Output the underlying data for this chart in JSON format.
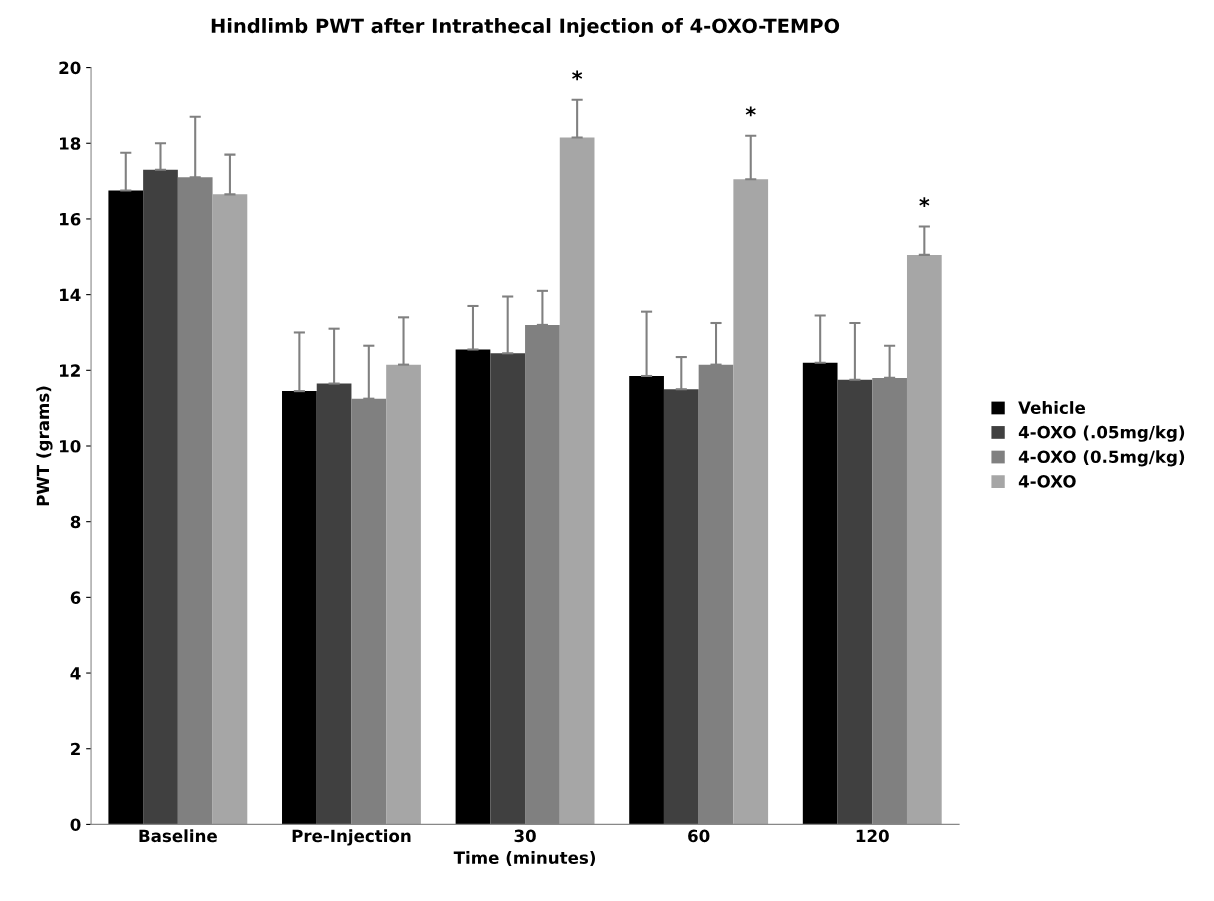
{
  "chart_data": {
    "type": "bar",
    "title": "Hindlimb PWT after Intrathecal Injection of 4-OXO-TEMPO",
    "xlabel": "Time (minutes)",
    "ylabel": "PWT (grams)",
    "categories": [
      "Baseline",
      "Pre-Injection",
      "30",
      "60",
      "120"
    ],
    "series": [
      {
        "name": "Vehicle",
        "color": "#000000",
        "values": [
          16.75,
          11.45,
          12.55,
          11.85,
          12.2
        ],
        "errors": [
          [
            16.75,
            17.75
          ],
          [
            11.45,
            13.0
          ],
          [
            12.55,
            13.7
          ],
          [
            11.85,
            13.55
          ],
          [
            12.2,
            13.45
          ]
        ]
      },
      {
        "name": "4-OXO (.05mg/kg)",
        "color": "#404040",
        "values": [
          17.3,
          11.65,
          12.45,
          11.5,
          11.75
        ],
        "errors": [
          [
            17.3,
            18.0
          ],
          [
            11.65,
            13.1
          ],
          [
            12.45,
            13.95
          ],
          [
            11.5,
            12.35
          ],
          [
            11.75,
            13.25
          ]
        ]
      },
      {
        "name": "4-OXO (0.5mg/kg)",
        "color": "#808080",
        "values": [
          17.1,
          11.25,
          13.2,
          12.15,
          11.8
        ],
        "errors": [
          [
            17.1,
            18.7
          ],
          [
            11.25,
            12.65
          ],
          [
            13.2,
            14.1
          ],
          [
            12.15,
            13.25
          ],
          [
            11.8,
            12.65
          ]
        ]
      },
      {
        "name": "4-OXO",
        "color": "#a6a6a6",
        "values": [
          16.65,
          12.15,
          18.15,
          17.05,
          15.05
        ],
        "errors": [
          [
            16.65,
            17.7
          ],
          [
            12.15,
            13.4
          ],
          [
            18.15,
            19.15
          ],
          [
            17.05,
            18.2
          ],
          [
            15.05,
            15.8
          ]
        ]
      }
    ],
    "annotations": [
      "*",
      "*",
      "*"
    ],
    "ylim": [
      0,
      20
    ],
    "yticks": [
      0,
      2,
      4,
      6,
      8,
      10,
      12,
      14,
      16,
      18,
      20
    ],
    "grid": false,
    "legend": "right"
  }
}
